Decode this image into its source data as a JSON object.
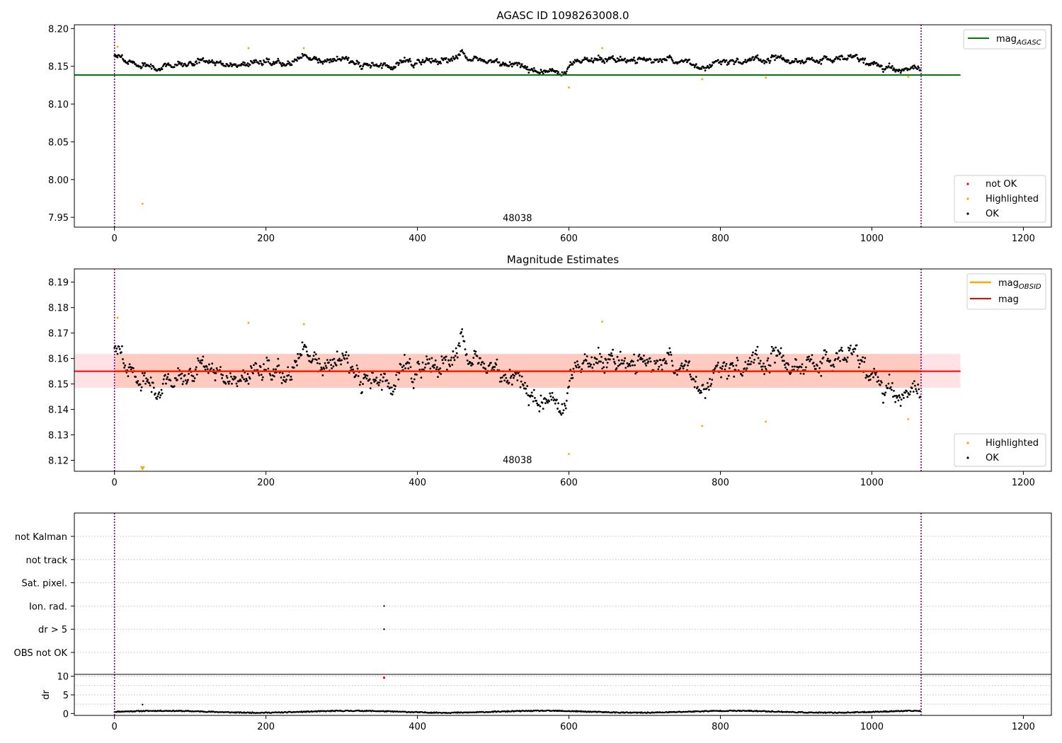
{
  "figure": {
    "background": "#ffffff"
  },
  "colors": {
    "ok": "#000000",
    "highlighted": "#ffa500",
    "not_ok": "#ff0000",
    "mag_agasc": "#008000",
    "mag": "#ff0000",
    "mag_obsid": "#ffa500",
    "band_pink": "#ffb6c1",
    "band_orange": "#ffa07a",
    "vline": "#800080"
  },
  "chart_data": [
    {
      "type": "scatter",
      "title": "AGASC ID 1098263008.0",
      "xlim": [
        -53,
        1237
      ],
      "ylim": [
        7.937,
        8.205
      ],
      "x_ticks": [
        0,
        200,
        400,
        600,
        800,
        1000,
        1200
      ],
      "x_tick_labels": [
        "0",
        "200",
        "400",
        "600",
        "800",
        "1000",
        "1200"
      ],
      "y_ticks": [
        7.95,
        8.0,
        8.05,
        8.1,
        8.15,
        8.2
      ],
      "y_tick_labels": [
        "7.95",
        "8.00",
        "8.05",
        "8.10",
        "8.15",
        "8.20"
      ],
      "vlines": [
        0,
        1065
      ],
      "hline": {
        "name": "mag",
        "sub": "AGASC",
        "y": 8.1385,
        "x": [
          -53,
          1117
        ],
        "color": "#008000"
      },
      "annotation": {
        "text": "48038",
        "x": 532,
        "y": 7.945
      },
      "ok_series": {
        "n": 1065,
        "seed": 7
      },
      "highlighted": {
        "x": [
          4,
          37,
          177,
          250,
          600,
          644,
          776,
          860,
          1048
        ],
        "y": [
          8.176,
          7.968,
          8.174,
          8.174,
          8.122,
          8.174,
          8.133,
          8.135,
          8.136
        ]
      },
      "legend_line": [
        {
          "name": "mag",
          "sub": "AGASC",
          "color": "#008000"
        }
      ],
      "legend_points": [
        {
          "label": "not OK",
          "color": "#ff0000"
        },
        {
          "label": "Highlighted",
          "color": "#ffa500"
        },
        {
          "label": "OK",
          "color": "#000000"
        }
      ]
    },
    {
      "type": "scatter",
      "title": "Magnitude Estimates",
      "xlim": [
        -53,
        1237
      ],
      "ylim": [
        8.1157,
        8.1952
      ],
      "x_ticks": [
        0,
        200,
        400,
        600,
        800,
        1000,
        1200
      ],
      "x_tick_labels": [
        "0",
        "200",
        "400",
        "600",
        "800",
        "1000",
        "1200"
      ],
      "y_ticks": [
        8.12,
        8.13,
        8.14,
        8.15,
        8.16,
        8.17,
        8.18,
        8.19
      ],
      "y_tick_labels": [
        "8.12",
        "8.13",
        "8.14",
        "8.15",
        "8.16",
        "8.17",
        "8.18",
        "8.19"
      ],
      "vlines": [
        0,
        1065
      ],
      "band": {
        "y": [
          8.1485,
          8.1618
        ],
        "x": [
          -53,
          1117
        ]
      },
      "mag_line": {
        "y": 8.155,
        "x": [
          -53,
          1117
        ]
      },
      "annotation": {
        "text": "48038",
        "x": 532,
        "y": 8.1189
      },
      "ok_series": {
        "n": 1065,
        "seed": 7
      },
      "highlighted": {
        "x": [
          4,
          177,
          250,
          600,
          644,
          776,
          860,
          1048
        ],
        "y": [
          8.176,
          8.174,
          8.1735,
          8.1225,
          8.1745,
          8.1335,
          8.1352,
          8.1362
        ]
      },
      "clipped_marker": {
        "x": 37,
        "color": "#ffa500"
      },
      "legend_line": [
        {
          "name": "mag",
          "sub": "OBSID",
          "color": "#ffa500"
        },
        {
          "name": "mag",
          "sub": "",
          "color": "#ff0000"
        }
      ],
      "legend_points": [
        {
          "label": "Highlighted",
          "color": "#ffa500"
        },
        {
          "label": "OK",
          "color": "#000000"
        }
      ]
    },
    {
      "type": "scatter",
      "xlim": [
        -53,
        1237
      ],
      "vlines": [
        0,
        1065
      ],
      "flag_labels": [
        "not Kalman",
        "not track",
        "Sat. pixel.",
        "Ion. rad.",
        "dr > 5",
        "OBS not OK"
      ],
      "flag_points": [
        {
          "label": "Ion. rad.",
          "x": 356
        },
        {
          "label": "dr > 5",
          "x": 356
        }
      ],
      "dr": {
        "ylabel": "dr",
        "ylim": [
          -0.5,
          10.5
        ],
        "y_ticks": [
          0,
          5,
          10
        ],
        "y_tick_labels": [
          "0",
          "5",
          "10"
        ],
        "x_ticks": [
          0,
          200,
          400,
          600,
          800,
          1000,
          1200
        ],
        "x_tick_labels": [
          "0",
          "200",
          "400",
          "600",
          "800",
          "1000",
          "1200"
        ],
        "outlier": {
          "x": 37,
          "y": 2.4
        },
        "not_ok_marker": {
          "x": 356,
          "y": 9.6
        }
      }
    }
  ]
}
